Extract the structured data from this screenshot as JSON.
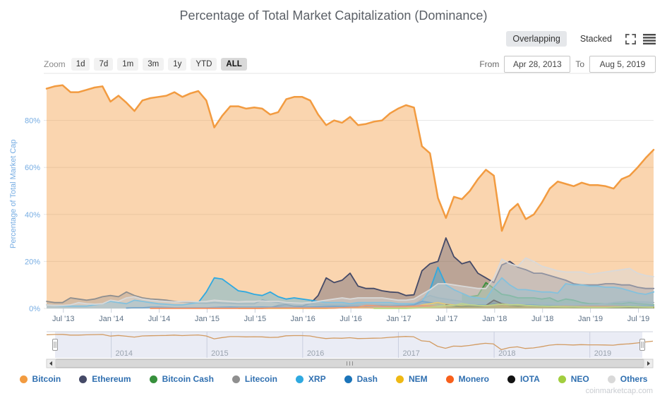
{
  "title": "Percentage of Total Market Capitalization (Dominance)",
  "mode_toggle": {
    "overlapping": "Overlapping",
    "stacked": "Stacked",
    "active": "Overlapping"
  },
  "zoom_bar": {
    "label": "Zoom",
    "buttons": [
      "1d",
      "7d",
      "1m",
      "3m",
      "1y",
      "YTD",
      "ALL"
    ],
    "active": "ALL"
  },
  "range": {
    "from_label": "From",
    "from_value": "Apr 28, 2013",
    "to_label": "To",
    "to_value": "Aug 5, 2019"
  },
  "watermark": "coinmarketcap.com",
  "colors": {
    "grid": "#e6e6e6",
    "axis_y": "#77ade3",
    "axis_x": "#5d7186",
    "tick": "#c9d0da",
    "nav_line": "#d29b62",
    "nav_mask": "rgba(91,110,180,0.13)",
    "nav_grid": "#c9cede",
    "nav_label": "#9aa3ae",
    "legend_text": "#2f6fb0",
    "watermark": "#c9ccd1",
    "title": "#5b6067"
  },
  "chart_data": {
    "type": "area",
    "mode": "overlapping",
    "title": "Percentage of Total Market Capitalization (Dominance)",
    "xlabel": "",
    "ylabel": "Percentage of Total Market Cap",
    "ylim": [
      0,
      100
    ],
    "x_range": [
      "Apr 28, 2013",
      "Aug 5, 2019"
    ],
    "point_interval": "monthly",
    "grid": "horizontal",
    "legend_position": "bottom",
    "y_grid": [
      0,
      20,
      40,
      60,
      80,
      100
    ],
    "y_ticks": [
      {
        "v": 0,
        "label": "0%"
      },
      {
        "v": 20,
        "label": "20%"
      },
      {
        "v": 40,
        "label": "40%"
      },
      {
        "v": 60,
        "label": "60%"
      },
      {
        "v": 80,
        "label": "80%"
      }
    ],
    "x_ticks": [
      {
        "label": "Jul '13",
        "m": 2.1
      },
      {
        "label": "Jan '14",
        "m": 8.1
      },
      {
        "label": "Jul '14",
        "m": 14.1
      },
      {
        "label": "Jan '15",
        "m": 20.1
      },
      {
        "label": "Jul '15",
        "m": 26.1
      },
      {
        "label": "Jan '16",
        "m": 32.1
      },
      {
        "label": "Jul '16",
        "m": 38.1
      },
      {
        "label": "Jan '17",
        "m": 44.1
      },
      {
        "label": "Jul '17",
        "m": 50.1
      },
      {
        "label": "Jan '18",
        "m": 56.1
      },
      {
        "label": "Jul '18",
        "m": 62.1
      },
      {
        "label": "Jan '19",
        "m": 68.1
      },
      {
        "label": "Jul '19",
        "m": 74.1
      }
    ],
    "series": [
      {
        "name": "Bitcoin",
        "color": "#F29B40",
        "fill_opacity": 0.42,
        "values": [
          93.5,
          94.5,
          95,
          92,
          92,
          93,
          94,
          94.5,
          88,
          90.5,
          87.5,
          84,
          88.5,
          89.5,
          90,
          90.5,
          92,
          90,
          91.5,
          92.5,
          88.5,
          77,
          82,
          86,
          86,
          85,
          85.5,
          85,
          82.5,
          83.5,
          89,
          90,
          90,
          88.5,
          82.5,
          78,
          80,
          79,
          81.5,
          78,
          78.5,
          79.5,
          80,
          83,
          85,
          86.5,
          85.5,
          69,
          66,
          47,
          38.5,
          47.5,
          46.5,
          50,
          55,
          59,
          56.5,
          33,
          41.5,
          44.5,
          38,
          40,
          45,
          51,
          54,
          53,
          52,
          53.5,
          52.5,
          52.5,
          52,
          51,
          55,
          56.5,
          60,
          64,
          67.5
        ]
      },
      {
        "name": "Ethereum",
        "color": "#454A67",
        "fill_opacity": 0.35,
        "values": [
          null,
          null,
          null,
          null,
          null,
          null,
          null,
          null,
          null,
          null,
          null,
          null,
          null,
          null,
          null,
          null,
          null,
          null,
          null,
          null,
          null,
          null,
          null,
          null,
          null,
          null,
          null,
          null,
          0.3,
          1.3,
          1.6,
          1,
          1,
          2,
          5.5,
          13,
          11,
          12,
          15,
          9.5,
          8.5,
          8.5,
          7.5,
          7,
          6.8,
          5.5,
          5.8,
          16,
          19,
          20,
          30,
          22,
          19,
          20,
          15,
          13,
          11,
          18.5,
          20,
          17.5,
          16.5,
          15,
          15,
          14,
          13,
          12,
          10.5,
          10,
          10,
          10,
          10.5,
          10.5,
          10,
          10,
          9,
          8.5,
          8.5
        ]
      },
      {
        "name": "Bitcoin Cash",
        "color": "#37903C",
        "fill_opacity": 0.35,
        "values": [
          null,
          null,
          null,
          null,
          null,
          null,
          null,
          null,
          null,
          null,
          null,
          null,
          null,
          null,
          null,
          null,
          null,
          null,
          null,
          null,
          null,
          null,
          null,
          null,
          null,
          null,
          null,
          null,
          null,
          null,
          null,
          null,
          null,
          null,
          null,
          null,
          null,
          null,
          null,
          null,
          null,
          null,
          null,
          null,
          null,
          null,
          null,
          null,
          null,
          null,
          null,
          null,
          6.5,
          5,
          5.5,
          11,
          8.5,
          6,
          5.5,
          4.5,
          4.5,
          4.5,
          4,
          4.5,
          3,
          4,
          3.5,
          2.5,
          2,
          2,
          2,
          2,
          2,
          2.5,
          2,
          1.8,
          1.5
        ]
      },
      {
        "name": "Litecoin",
        "color": "#8F8F8F",
        "fill_opacity": 0.35,
        "values": [
          3,
          2.5,
          2.5,
          4.5,
          4,
          3.5,
          4,
          5,
          5.5,
          5,
          7,
          5.5,
          4.5,
          4,
          3.8,
          3.5,
          3,
          2.8,
          2.5,
          2.3,
          2.2,
          2.5,
          2.3,
          2.2,
          2,
          2,
          2,
          3.5,
          3,
          2.5,
          2.2,
          2,
          2,
          2,
          1.8,
          1.6,
          1.5,
          1.5,
          1.5,
          1.8,
          1.7,
          1.6,
          1.5,
          1.5,
          1.4,
          1.5,
          1.5,
          4,
          5.5,
          4.5,
          4,
          3.5,
          3,
          3,
          2.8,
          2.5,
          3,
          2.8,
          2.5,
          2.3,
          2.5,
          2.5,
          2.3,
          2.2,
          2,
          1.8,
          1.8,
          1.7,
          1.6,
          1.7,
          2,
          2.5,
          2.8,
          3,
          2.8,
          2.7,
          2.5
        ]
      },
      {
        "name": "XRP",
        "color": "#2FA9E0",
        "fill_opacity": 0.35,
        "values": [
          1.5,
          1.2,
          1,
          1,
          1,
          1,
          1.5,
          2,
          3,
          2.5,
          2,
          3.5,
          3,
          2.5,
          2,
          1.8,
          1.5,
          1.5,
          2,
          2.5,
          7,
          13,
          12.5,
          10,
          7.5,
          7,
          6,
          5.5,
          7,
          5,
          4,
          4.5,
          4,
          3.5,
          3,
          2.5,
          2.5,
          2.5,
          2,
          2.5,
          2.5,
          2.5,
          2.5,
          2.5,
          2,
          2,
          2,
          3,
          8,
          17.5,
          10,
          8,
          6.5,
          5,
          4.5,
          4,
          9,
          13,
          10,
          8,
          8,
          7.5,
          7,
          7,
          6.5,
          10.5,
          10,
          10,
          9.5,
          9.5,
          9,
          9,
          8.5,
          7.5,
          6.5,
          6,
          7
        ]
      },
      {
        "name": "Dash",
        "color": "#1B74B9",
        "fill_opacity": 0.35,
        "values": [
          null,
          null,
          null,
          null,
          null,
          null,
          null,
          null,
          null,
          null,
          0.2,
          0.3,
          0.3,
          0.5,
          0.5,
          0.4,
          0.3,
          0.3,
          0.3,
          0.3,
          0.3,
          0.4,
          0.5,
          0.6,
          0.5,
          0.5,
          0.5,
          0.6,
          0.5,
          0.5,
          0.4,
          0.4,
          0.5,
          0.6,
          0.7,
          0.8,
          0.9,
          0.8,
          0.8,
          0.9,
          1,
          1.2,
          1.1,
          1,
          1.1,
          1.2,
          1.5,
          3,
          2.5,
          2,
          1.8,
          1.5,
          1.3,
          1.2,
          1.5,
          1.4,
          1.8,
          1.6,
          1.4,
          1.3,
          1.5,
          1.4,
          1.2,
          1.1,
          1,
          0.9,
          0.9,
          0.9,
          0.9,
          0.9,
          0.9,
          0.9,
          1,
          1,
          0.9,
          0.8,
          0.8
        ]
      },
      {
        "name": "NEM",
        "color": "#EFB914",
        "fill_opacity": 0.45,
        "values": [
          null,
          null,
          null,
          null,
          null,
          null,
          null,
          null,
          null,
          null,
          null,
          null,
          null,
          null,
          null,
          null,
          null,
          null,
          null,
          null,
          null,
          null,
          null,
          null,
          0.1,
          0.1,
          0.1,
          0.1,
          0.1,
          0.1,
          0.1,
          0.1,
          0.1,
          0.1,
          0.1,
          0.1,
          0.2,
          0.3,
          0.3,
          0.3,
          0.3,
          0.2,
          0.2,
          0.2,
          0.2,
          0.3,
          0.5,
          1.5,
          2,
          2.5,
          1.8,
          1.5,
          1.2,
          1,
          1,
          1.2,
          1.5,
          2,
          1.5,
          1.2,
          1,
          0.8,
          0.7,
          0.6,
          0.5,
          0.5,
          0.4,
          0.4,
          0.4,
          0.4,
          0.4,
          0.4,
          0.3,
          0.3,
          0.3,
          0.3,
          0.3
        ]
      },
      {
        "name": "Monero",
        "color": "#F8601C",
        "fill_opacity": 0.45,
        "values": [
          null,
          null,
          null,
          null,
          null,
          null,
          null,
          null,
          null,
          null,
          null,
          null,
          null,
          0.1,
          0.1,
          0.1,
          0.1,
          0.1,
          0.1,
          0.1,
          0.1,
          0.1,
          0.1,
          0.1,
          0.1,
          0.1,
          0.1,
          0.1,
          0.2,
          0.2,
          0.2,
          0.2,
          0.2,
          0.2,
          0.2,
          0.2,
          0.2,
          0.3,
          0.5,
          0.6,
          1.3,
          1.2,
          0.9,
          0.8,
          0.8,
          0.9,
          1,
          1.2,
          1,
          0.8,
          0.9,
          0.8,
          0.7,
          0.8,
          0.8,
          0.9,
          1.2,
          1.1,
          1,
          0.9,
          1,
          1,
          0.9,
          0.9,
          0.9,
          0.9,
          0.8,
          0.8,
          0.8,
          0.8,
          0.8,
          0.8,
          0.8,
          0.8,
          0.7,
          0.6,
          0.6
        ]
      },
      {
        "name": "IOTA",
        "color": "#121212",
        "fill_opacity": 0.3,
        "values": [
          null,
          null,
          null,
          null,
          null,
          null,
          null,
          null,
          null,
          null,
          null,
          null,
          null,
          null,
          null,
          null,
          null,
          null,
          null,
          null,
          null,
          null,
          null,
          null,
          null,
          null,
          null,
          null,
          null,
          null,
          null,
          null,
          null,
          null,
          null,
          null,
          null,
          null,
          null,
          null,
          null,
          null,
          null,
          null,
          null,
          null,
          null,
          null,
          null,
          null,
          1.5,
          1,
          0.8,
          1,
          0.9,
          1.2,
          3.5,
          2,
          1.3,
          1,
          1.2,
          1,
          0.9,
          0.8,
          0.7,
          0.6,
          0.5,
          0.5,
          0.4,
          0.4,
          0.4,
          0.3,
          0.3,
          0.3,
          0.3,
          0.3,
          0.3
        ]
      },
      {
        "name": "NEO",
        "color": "#A2CE3F",
        "fill_opacity": 0.45,
        "values": [
          null,
          null,
          null,
          null,
          null,
          null,
          null,
          null,
          null,
          null,
          null,
          null,
          null,
          null,
          null,
          null,
          null,
          null,
          null,
          null,
          null,
          null,
          null,
          null,
          null,
          null,
          null,
          null,
          null,
          null,
          null,
          null,
          null,
          null,
          null,
          null,
          null,
          null,
          null,
          null,
          null,
          0.1,
          0.1,
          0.1,
          0.1,
          0.1,
          0.2,
          0.3,
          0.5,
          0.8,
          1.2,
          1.3,
          2,
          1.5,
          1.3,
          1.2,
          1.5,
          1.8,
          1.5,
          1.6,
          1.3,
          1.1,
          1,
          0.9,
          0.8,
          0.7,
          0.7,
          0.6,
          0.5,
          0.5,
          0.5,
          0.6,
          0.7,
          0.8,
          0.7,
          0.6,
          0.5
        ]
      },
      {
        "name": "Others",
        "color": "#D9D9D9",
        "fill_opacity": 0.5,
        "values": [
          1.5,
          1.3,
          1.3,
          1.5,
          2.5,
          2,
          1.8,
          2,
          3.5,
          3,
          4.5,
          5,
          4,
          3.5,
          3.2,
          3,
          2.8,
          3,
          3,
          2.8,
          3,
          3.5,
          3.2,
          3,
          2.8,
          3,
          3,
          3.2,
          3,
          3,
          2.5,
          2.3,
          2.2,
          2.5,
          3,
          3.5,
          4,
          4.5,
          4,
          4.5,
          4.5,
          4.5,
          4.5,
          4,
          3.5,
          3.5,
          4,
          6,
          8,
          10.5,
          10.5,
          10,
          9.5,
          9,
          8.5,
          8.5,
          13,
          21,
          19,
          18,
          21.5,
          20,
          18,
          17,
          16,
          15.5,
          15.5,
          15.5,
          14.5,
          15,
          15.5,
          16,
          16.5,
          17,
          15,
          14,
          13.5
        ]
      }
    ]
  },
  "navigator": {
    "years": [
      {
        "label": "2014",
        "m": 8.1
      },
      {
        "label": "2015",
        "m": 20.1
      },
      {
        "label": "2016",
        "m": 32.1
      },
      {
        "label": "2017",
        "m": 44.1
      },
      {
        "label": "2018",
        "m": 56.1
      },
      {
        "label": "2019",
        "m": 68.1
      }
    ]
  },
  "legend": {
    "items": [
      "Bitcoin",
      "Ethereum",
      "Bitcoin Cash",
      "Litecoin",
      "XRP",
      "Dash",
      "NEM",
      "Monero",
      "IOTA",
      "NEO",
      "Others"
    ]
  }
}
